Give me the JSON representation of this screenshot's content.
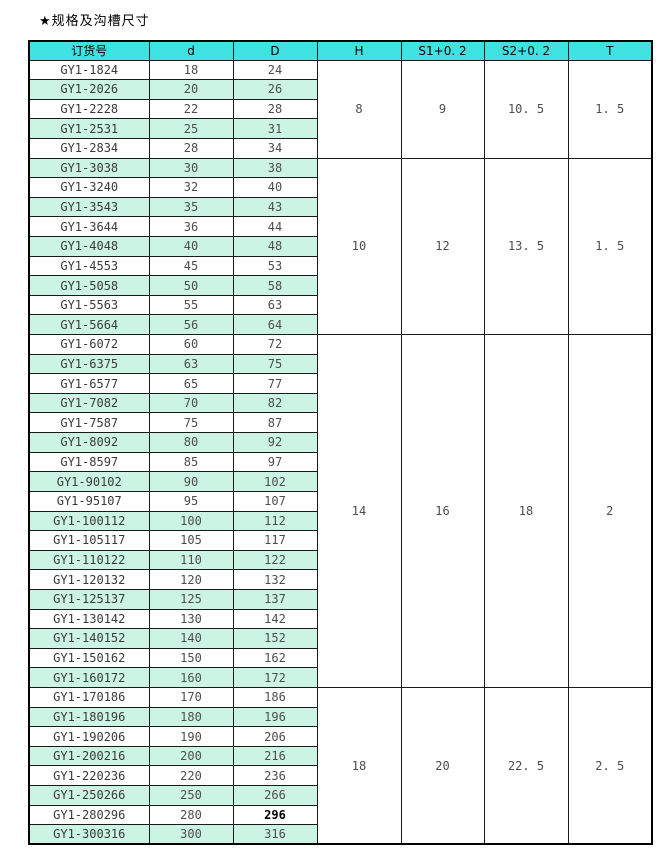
{
  "title": "★规格及沟槽尺寸",
  "colors": {
    "header_bg": "#3fe1e1",
    "row_alt_bg": "#ccf4e4",
    "border": "#1a1a1a",
    "text": "#4d4d4d"
  },
  "table": {
    "headers": [
      "订货号",
      "d",
      "D",
      "H",
      "S1+0. 2",
      "S2+0. 2",
      "T"
    ],
    "rows": [
      [
        "GY1-1824",
        "18",
        "24"
      ],
      [
        "GY1-2026",
        "20",
        "26"
      ],
      [
        "GY1-2228",
        "22",
        "28"
      ],
      [
        "GY1-2531",
        "25",
        "31"
      ],
      [
        "GY1-2834",
        "28",
        "34"
      ],
      [
        "GY1-3038",
        "30",
        "38"
      ],
      [
        "GY1-3240",
        "32",
        "40"
      ],
      [
        "GY1-3543",
        "35",
        "43"
      ],
      [
        "GY1-3644",
        "36",
        "44"
      ],
      [
        "GY1-4048",
        "40",
        "48"
      ],
      [
        "GY1-4553",
        "45",
        "53"
      ],
      [
        "GY1-5058",
        "50",
        "58"
      ],
      [
        "GY1-5563",
        "55",
        "63"
      ],
      [
        "GY1-5664",
        "56",
        "64"
      ],
      [
        "GY1-6072",
        "60",
        "72"
      ],
      [
        "GY1-6375",
        "63",
        "75"
      ],
      [
        "GY1-6577",
        "65",
        "77"
      ],
      [
        "GY1-7082",
        "70",
        "82"
      ],
      [
        "GY1-7587",
        "75",
        "87"
      ],
      [
        "GY1-8092",
        "80",
        "92"
      ],
      [
        "GY1-8597",
        "85",
        "97"
      ],
      [
        "GY1-90102",
        "90",
        "102"
      ],
      [
        "GY1-95107",
        "95",
        "107"
      ],
      [
        "GY1-100112",
        "100",
        "112"
      ],
      [
        "GY1-105117",
        "105",
        "117"
      ],
      [
        "GY1-110122",
        "110",
        "122"
      ],
      [
        "GY1-120132",
        "120",
        "132"
      ],
      [
        "GY1-125137",
        "125",
        "137"
      ],
      [
        "GY1-130142",
        "130",
        "142"
      ],
      [
        "GY1-140152",
        "140",
        "152"
      ],
      [
        "GY1-150162",
        "150",
        "162"
      ],
      [
        "GY1-160172",
        "160",
        "172"
      ],
      [
        "GY1-170186",
        "170",
        "186"
      ],
      [
        "GY1-180196",
        "180",
        "196"
      ],
      [
        "GY1-190206",
        "190",
        "206"
      ],
      [
        "GY1-200216",
        "200",
        "216"
      ],
      [
        "GY1-220236",
        "220",
        "236"
      ],
      [
        "GY1-250266",
        "250",
        "266"
      ],
      [
        "GY1-280296",
        "280",
        "296"
      ],
      [
        "GY1-300316",
        "300",
        "316"
      ]
    ],
    "groups": [
      {
        "rows": 5,
        "H": "8",
        "S1": "9",
        "S2": "10. 5",
        "T": "1. 5"
      },
      {
        "rows": 9,
        "H": "10",
        "S1": "12",
        "S2": "13. 5",
        "T": "1. 5"
      },
      {
        "rows": 18,
        "H": "14",
        "S1": "16",
        "S2": "18",
        "T": "2"
      },
      {
        "rows": 8,
        "H": "18",
        "S1": "20",
        "S2": "22. 5",
        "T": "2. 5"
      }
    ],
    "emphasis": {
      "row_index": 38,
      "col_index": 2
    }
  }
}
